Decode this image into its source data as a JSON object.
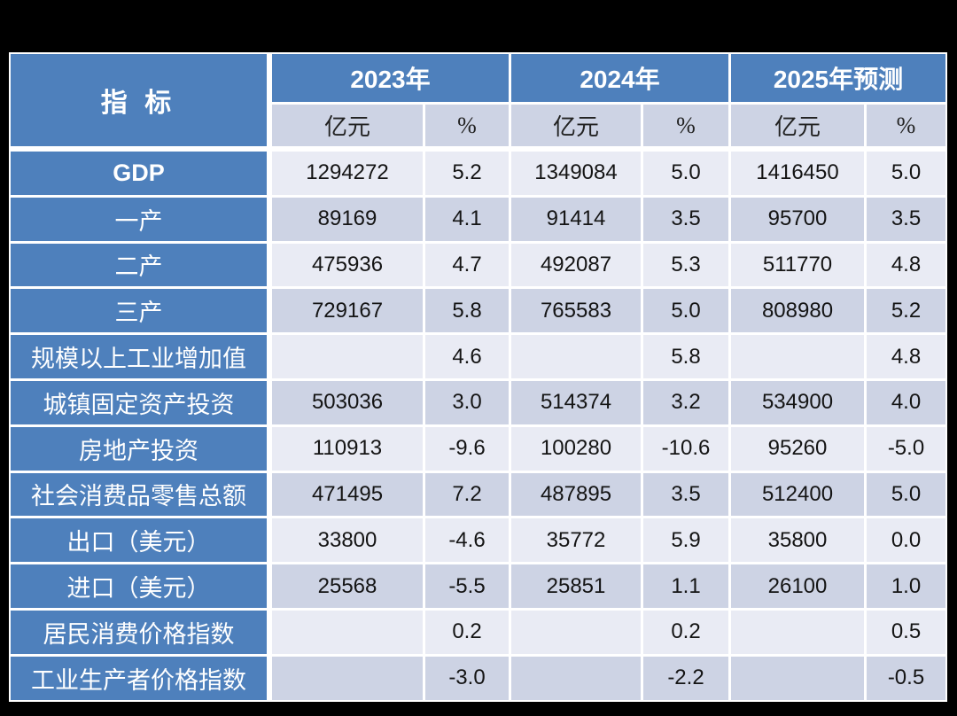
{
  "colors": {
    "header_blue": "#4e80bc",
    "band_light": "#e9ebf4",
    "band_dark": "#cdd3e4",
    "cell_border": "#ffffff",
    "page_background": "#000000",
    "header_text": "#ffffff",
    "data_text": "#141414"
  },
  "chart_data": {
    "type": "table",
    "corner_header": "指 标",
    "column_groups": [
      "2023年",
      "2024年",
      "2025年预测"
    ],
    "unit_headers": [
      "亿元",
      "%",
      "亿元",
      "%",
      "亿元",
      "%"
    ],
    "rows": [
      {
        "label": "GDP",
        "bold": true,
        "values": [
          "1294272",
          "5.2",
          "1349084",
          "5.0",
          "1416450",
          "5.0"
        ]
      },
      {
        "label": "一产",
        "bold": false,
        "values": [
          "89169",
          "4.1",
          "91414",
          "3.5",
          "95700",
          "3.5"
        ]
      },
      {
        "label": "二产",
        "bold": false,
        "values": [
          "475936",
          "4.7",
          "492087",
          "5.3",
          "511770",
          "4.8"
        ]
      },
      {
        "label": "三产",
        "bold": false,
        "values": [
          "729167",
          "5.8",
          "765583",
          "5.0",
          "808980",
          "5.2"
        ]
      },
      {
        "label": "规模以上工业增加值",
        "bold": false,
        "values": [
          "",
          "4.6",
          "",
          "5.8",
          "",
          "4.8"
        ]
      },
      {
        "label": "城镇固定资产投资",
        "bold": false,
        "values": [
          "503036",
          "3.0",
          "514374",
          "3.2",
          "534900",
          "4.0"
        ]
      },
      {
        "label": "房地产投资",
        "bold": false,
        "values": [
          "110913",
          "-9.6",
          "100280",
          "-10.6",
          "95260",
          "-5.0"
        ]
      },
      {
        "label": "社会消费品零售总额",
        "bold": false,
        "values": [
          "471495",
          "7.2",
          "487895",
          "3.5",
          "512400",
          "5.0"
        ]
      },
      {
        "label": "出口（美元）",
        "bold": false,
        "values": [
          "33800",
          "-4.6",
          "35772",
          "5.9",
          "35800",
          "0.0"
        ]
      },
      {
        "label": "进口（美元）",
        "bold": false,
        "values": [
          "25568",
          "-5.5",
          "25851",
          "1.1",
          "26100",
          "1.0"
        ]
      },
      {
        "label": "居民消费价格指数",
        "bold": false,
        "values": [
          "",
          "0.2",
          "",
          "0.2",
          "",
          "0.5"
        ]
      },
      {
        "label": "工业生产者价格指数",
        "bold": false,
        "values": [
          "",
          "-3.0",
          "",
          "-2.2",
          "",
          "-0.5"
        ]
      }
    ]
  }
}
